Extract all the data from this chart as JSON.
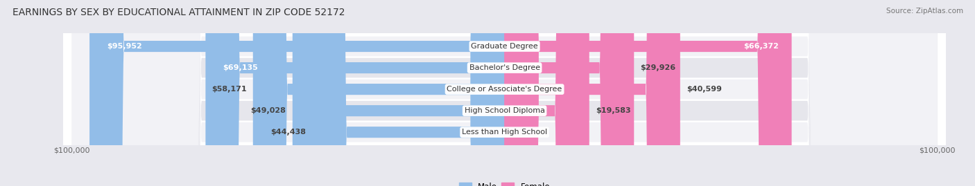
{
  "title": "EARNINGS BY SEX BY EDUCATIONAL ATTAINMENT IN ZIP CODE 52172",
  "source": "Source: ZipAtlas.com",
  "categories": [
    "Less than High School",
    "High School Diploma",
    "College or Associate's Degree",
    "Bachelor's Degree",
    "Graduate Degree"
  ],
  "male_values": [
    44438,
    49028,
    58171,
    69135,
    95952
  ],
  "female_values": [
    0,
    19583,
    40599,
    29926,
    66372
  ],
  "max_value": 100000,
  "male_color": "#92bde8",
  "female_color": "#f080b8",
  "row_bg_light": "#f2f2f6",
  "row_bg_dark": "#e6e6ec",
  "axis_label": "$100,000",
  "title_fontsize": 10,
  "source_fontsize": 7.5,
  "bar_height": 0.52,
  "label_fontsize": 8,
  "category_fontsize": 8,
  "text_color_dark": "#444444",
  "text_color_white": "#ffffff",
  "text_color_gray": "#666666"
}
